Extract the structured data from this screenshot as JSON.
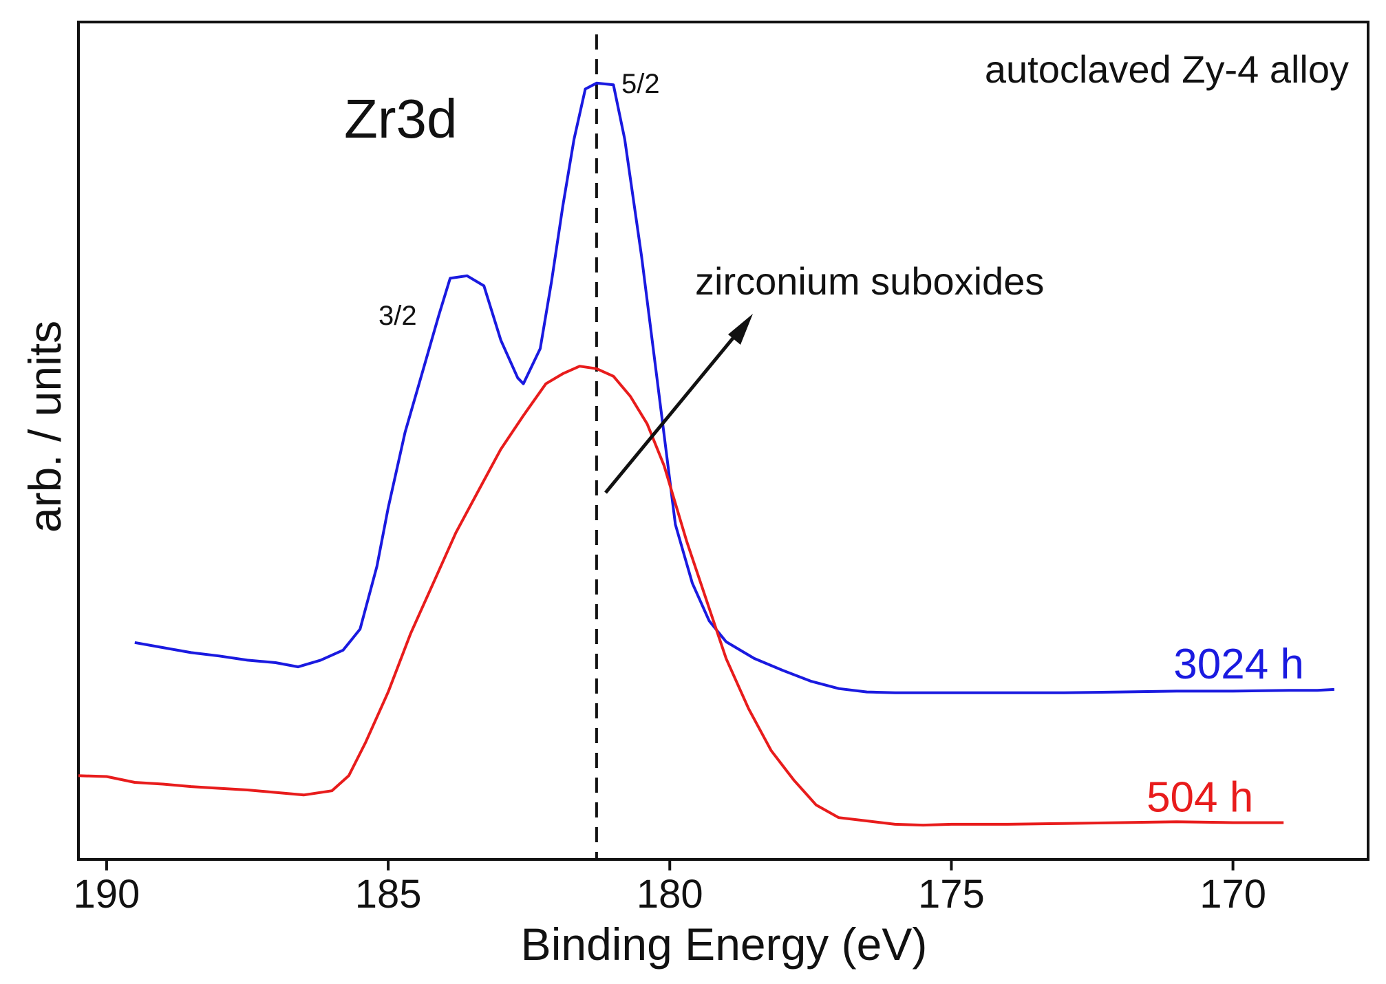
{
  "chart_data": {
    "type": "line",
    "title": "Zr3d",
    "subtitle": "autoclaved Zy-4 alloy",
    "xlabel": "Binding Energy (eV)",
    "ylabel": "arb. / units",
    "xlim": [
      190.5,
      167.6
    ],
    "ylim": [
      0,
      1
    ],
    "x_ticks": [
      "190",
      "185",
      "180",
      "175",
      "170"
    ],
    "x_reversed": true,
    "grid": false,
    "annotations": {
      "peak_32": "3/2",
      "peak_52": "5/2",
      "arrow_text": "zirconium suboxides",
      "dashed_line_x": 181.3
    },
    "series": [
      {
        "name": "3024 h",
        "color": "#1a1ae0",
        "points": [
          [
            189.5,
            0.259
          ],
          [
            189.0,
            0.253
          ],
          [
            188.5,
            0.247
          ],
          [
            188.0,
            0.243
          ],
          [
            187.5,
            0.238
          ],
          [
            187.0,
            0.235
          ],
          [
            186.6,
            0.23
          ],
          [
            186.2,
            0.238
          ],
          [
            185.8,
            0.25
          ],
          [
            185.5,
            0.275
          ],
          [
            185.2,
            0.35
          ],
          [
            185.0,
            0.42
          ],
          [
            184.7,
            0.51
          ],
          [
            184.4,
            0.58
          ],
          [
            184.1,
            0.65
          ],
          [
            183.9,
            0.694
          ],
          [
            183.6,
            0.697
          ],
          [
            183.3,
            0.685
          ],
          [
            183.0,
            0.62
          ],
          [
            182.7,
            0.575
          ],
          [
            182.6,
            0.568
          ],
          [
            182.3,
            0.61
          ],
          [
            182.1,
            0.69
          ],
          [
            181.9,
            0.78
          ],
          [
            181.7,
            0.86
          ],
          [
            181.5,
            0.92
          ],
          [
            181.3,
            0.927
          ],
          [
            181.0,
            0.925
          ],
          [
            180.8,
            0.86
          ],
          [
            180.5,
            0.72
          ],
          [
            180.2,
            0.56
          ],
          [
            179.9,
            0.4
          ],
          [
            179.6,
            0.33
          ],
          [
            179.3,
            0.285
          ],
          [
            179.0,
            0.26
          ],
          [
            178.5,
            0.24
          ],
          [
            178.0,
            0.226
          ],
          [
            177.5,
            0.213
          ],
          [
            177.0,
            0.204
          ],
          [
            176.5,
            0.2
          ],
          [
            176.0,
            0.199
          ],
          [
            175.0,
            0.199
          ],
          [
            174.0,
            0.199
          ],
          [
            173.0,
            0.199
          ],
          [
            172.0,
            0.2
          ],
          [
            171.0,
            0.201
          ],
          [
            170.0,
            0.201
          ],
          [
            169.0,
            0.202
          ],
          [
            168.5,
            0.202
          ],
          [
            168.2,
            0.203
          ]
        ]
      },
      {
        "name": "504 h",
        "color": "#e81c1c",
        "points": [
          [
            190.5,
            0.1
          ],
          [
            190.0,
            0.099
          ],
          [
            189.5,
            0.092
          ],
          [
            189.0,
            0.09
          ],
          [
            188.5,
            0.087
          ],
          [
            188.0,
            0.085
          ],
          [
            187.5,
            0.083
          ],
          [
            187.0,
            0.08
          ],
          [
            186.5,
            0.077
          ],
          [
            186.0,
            0.082
          ],
          [
            185.7,
            0.1
          ],
          [
            185.4,
            0.14
          ],
          [
            185.0,
            0.2
          ],
          [
            184.6,
            0.27
          ],
          [
            184.2,
            0.33
          ],
          [
            183.8,
            0.39
          ],
          [
            183.4,
            0.44
          ],
          [
            183.0,
            0.49
          ],
          [
            182.6,
            0.53
          ],
          [
            182.2,
            0.568
          ],
          [
            181.9,
            0.58
          ],
          [
            181.6,
            0.589
          ],
          [
            181.3,
            0.586
          ],
          [
            181.0,
            0.577
          ],
          [
            180.7,
            0.553
          ],
          [
            180.4,
            0.52
          ],
          [
            180.1,
            0.47
          ],
          [
            179.7,
            0.38
          ],
          [
            179.3,
            0.3
          ],
          [
            179.0,
            0.24
          ],
          [
            178.6,
            0.18
          ],
          [
            178.2,
            0.13
          ],
          [
            177.8,
            0.095
          ],
          [
            177.4,
            0.065
          ],
          [
            177.0,
            0.05
          ],
          [
            176.5,
            0.046
          ],
          [
            176.0,
            0.042
          ],
          [
            175.5,
            0.041
          ],
          [
            175.0,
            0.042
          ],
          [
            174.0,
            0.042
          ],
          [
            173.0,
            0.043
          ],
          [
            172.0,
            0.044
          ],
          [
            171.0,
            0.045
          ],
          [
            170.0,
            0.044
          ],
          [
            169.5,
            0.044
          ],
          [
            169.1,
            0.044
          ]
        ]
      }
    ]
  }
}
